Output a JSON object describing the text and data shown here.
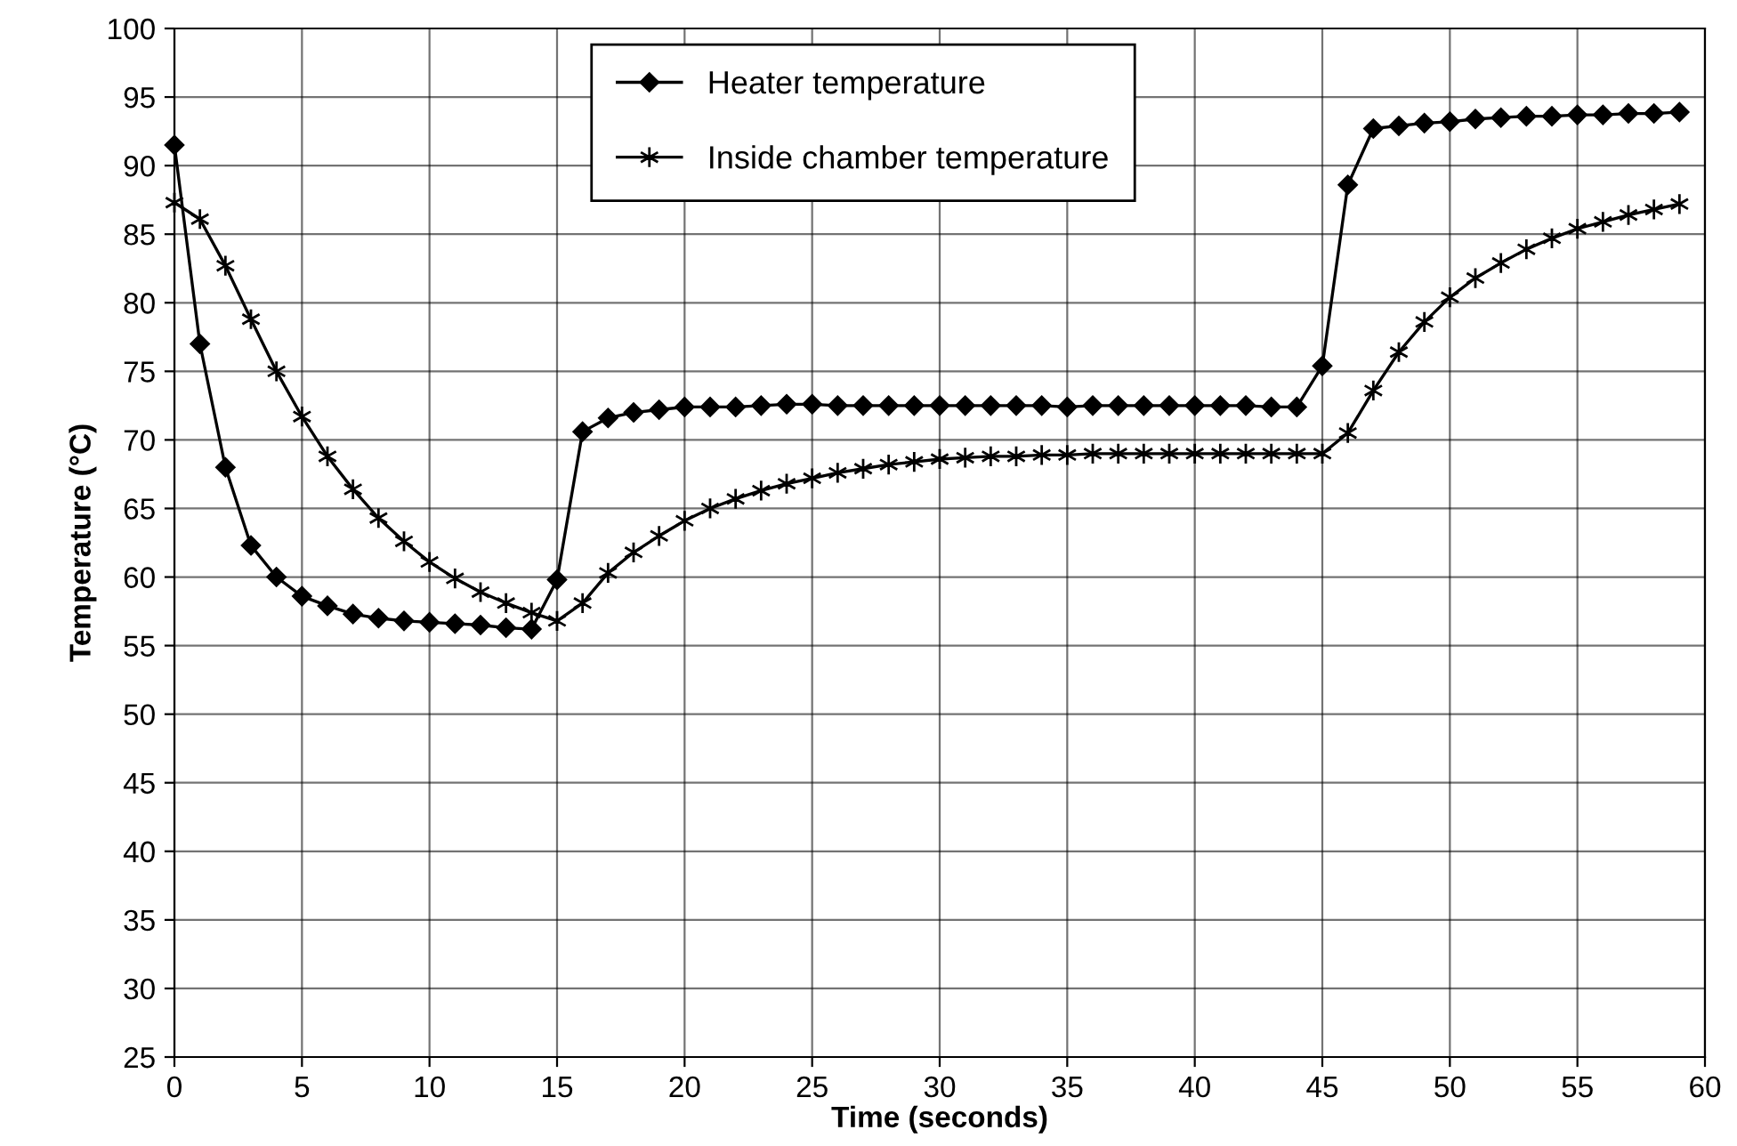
{
  "chart_data": {
    "type": "line",
    "xlabel": "Time (seconds)",
    "ylabel": "Temperature (°C)",
    "x": [
      0,
      1,
      2,
      3,
      4,
      5,
      6,
      7,
      8,
      9,
      10,
      11,
      12,
      13,
      14,
      15,
      16,
      17,
      18,
      19,
      20,
      21,
      22,
      23,
      24,
      25,
      26,
      27,
      28,
      29,
      30,
      31,
      32,
      33,
      34,
      35,
      36,
      37,
      38,
      39,
      40,
      41,
      42,
      43,
      44,
      45,
      46,
      47,
      48,
      49,
      50,
      51,
      52,
      53,
      54,
      55,
      56,
      57,
      58,
      59
    ],
    "series": [
      {
        "name": "Heater temperature",
        "color": "#000000",
        "marker": "diamond",
        "values": [
          91.5,
          77,
          68,
          62.3,
          60,
          58.6,
          57.9,
          57.3,
          57.0,
          56.8,
          56.7,
          56.6,
          56.5,
          56.3,
          56.2,
          59.8,
          70.6,
          71.6,
          72.0,
          72.2,
          72.4,
          72.4,
          72.4,
          72.5,
          72.6,
          72.6,
          72.5,
          72.5,
          72.5,
          72.5,
          72.5,
          72.5,
          72.5,
          72.5,
          72.5,
          72.4,
          72.5,
          72.5,
          72.5,
          72.5,
          72.5,
          72.5,
          72.5,
          72.4,
          72.4,
          75.4,
          88.6,
          92.7,
          92.9,
          93.1,
          93.2,
          93.4,
          93.5,
          93.6,
          93.6,
          93.7,
          93.7,
          93.8,
          93.8,
          93.9
        ]
      },
      {
        "name": "Inside chamber temperature",
        "color": "#000000",
        "marker": "cross",
        "values": [
          87.3,
          86.1,
          82.7,
          78.8,
          75.0,
          71.7,
          68.8,
          66.4,
          64.3,
          62.6,
          61.1,
          59.9,
          58.9,
          58.1,
          57.4,
          56.8,
          58.1,
          60.3,
          61.8,
          63.0,
          64.1,
          65.0,
          65.7,
          66.3,
          66.8,
          67.2,
          67.6,
          67.9,
          68.2,
          68.4,
          68.6,
          68.7,
          68.8,
          68.8,
          68.9,
          68.9,
          69.0,
          69.0,
          69.0,
          69.0,
          69.0,
          69.0,
          69.0,
          69.0,
          69.0,
          69.0,
          70.5,
          73.6,
          76.4,
          78.6,
          80.4,
          81.8,
          82.9,
          83.9,
          84.7,
          85.4,
          85.9,
          86.4,
          86.8,
          87.2
        ]
      }
    ],
    "xlim": [
      0,
      60
    ],
    "xticks": [
      0,
      5,
      10,
      15,
      20,
      25,
      30,
      35,
      40,
      45,
      50,
      55,
      60
    ],
    "ylim": [
      25,
      100
    ],
    "yticks": [
      25,
      30,
      35,
      40,
      45,
      50,
      55,
      60,
      65,
      70,
      75,
      80,
      85,
      90,
      95,
      100
    ],
    "grid": true,
    "legend": "top",
    "line_style": "solid"
  }
}
